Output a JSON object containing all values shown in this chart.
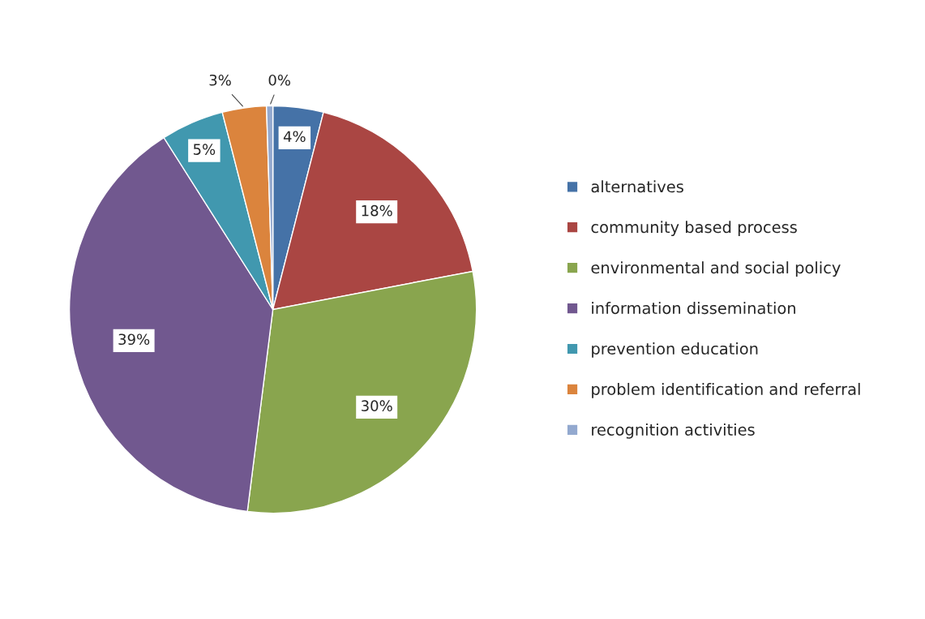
{
  "chart_data": {
    "type": "pie",
    "categories": [
      "alternatives",
      "community based process",
      "environmental and social policy",
      "information dissemination",
      "prevention education",
      "problem identification and referral",
      "recognition activities"
    ],
    "values": [
      4,
      18,
      30,
      39,
      5,
      3.5,
      0.5
    ],
    "value_labels": [
      "4%",
      "18%",
      "30%",
      "39%",
      "5%",
      "3%",
      "0%"
    ],
    "colors": [
      "#4572a7",
      "#aa4643",
      "#89a54e",
      "#71588f",
      "#4198af",
      "#db843d",
      "#93a9cf"
    ],
    "legend": "right"
  }
}
